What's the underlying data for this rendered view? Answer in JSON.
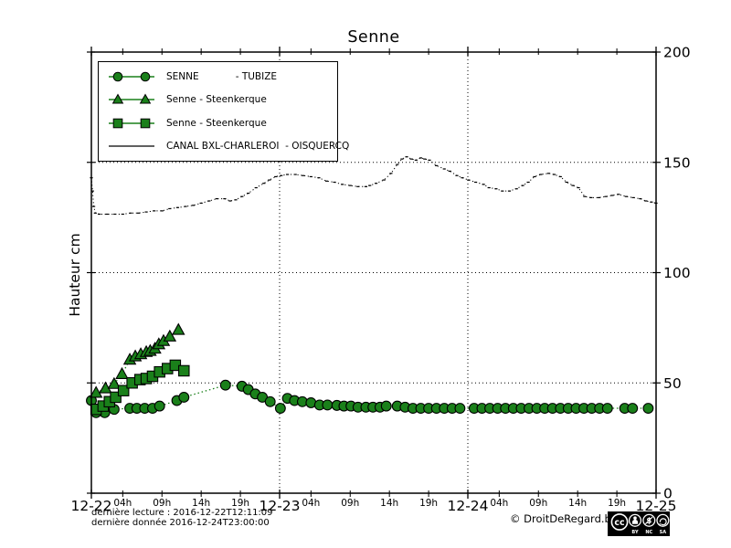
{
  "title": "Senne",
  "y_axis": {
    "label": "Hauteur cm"
  },
  "legend_items": [
    {
      "id": "senne-tubize",
      "label": "SENNE            - TUBIZE",
      "marker": "circle",
      "color": "#1a801a"
    },
    {
      "id": "steenkerque-triangle",
      "label": "Senne - Steenkerque",
      "marker": "triangle",
      "color": "#1a801a"
    },
    {
      "id": "steenkerque-square",
      "label": "Senne - Steenkerque",
      "marker": "square",
      "color": "#1a801a"
    },
    {
      "id": "canal-bxl-oisquercq",
      "label": "CANAL BXL-CHARLEROI  - OISQUERCQ",
      "marker": "line",
      "color": "#000000"
    }
  ],
  "colors": {
    "series_green": "#1a801a",
    "marker_edge": "#000000",
    "canal_line": "#000000",
    "grid": "#000000"
  },
  "footer": {
    "line1": "dernière lecture : 2016-12-22T12:11:09",
    "line2": "dernière donnée  2016-12-24T23:00:00",
    "copyright": "© DroitDeRegard.be",
    "license": {
      "cc": "cc",
      "by": "BY",
      "nc": "NC",
      "sa": "SA"
    }
  },
  "chart_data": {
    "type": "line",
    "title": "Senne",
    "ylabel": "Hauteur cm",
    "ylim": [
      0,
      200
    ],
    "xlim": [
      0,
      72
    ],
    "x_unit": "hours since 2016-12-22 00:00",
    "y_ticks": [
      0,
      50,
      100,
      150,
      200
    ],
    "x_day_ticks": [
      {
        "t": 0,
        "label": "12-22"
      },
      {
        "t": 24,
        "label": "12-23"
      },
      {
        "t": 48,
        "label": "12-24"
      },
      {
        "t": 72,
        "label": "12-25"
      }
    ],
    "x_hour_ticks": {
      "hours": [
        4,
        9,
        14,
        19
      ],
      "labels": [
        "04h",
        "09h",
        "14h",
        "19h"
      ],
      "days": [
        0,
        24,
        48
      ]
    },
    "grid": {
      "vertical_at_hours": [
        24,
        48
      ],
      "horizontal_at": [
        50,
        100,
        150
      ]
    },
    "legend_position": "upper left",
    "series": [
      {
        "id": "senne-tubize",
        "name": "SENNE - TUBIZE",
        "marker": "circle",
        "color": "#1a801a",
        "linestyle": "dotted",
        "points": [
          [
            0,
            42
          ],
          [
            0.6,
            36.5
          ],
          [
            1.7,
            36.5
          ],
          [
            2.9,
            38
          ],
          [
            4.9,
            38.5
          ],
          [
            5.8,
            38.5
          ],
          [
            6.8,
            38.5
          ],
          [
            7.8,
            38.5
          ],
          [
            8.7,
            39.5
          ],
          [
            10.9,
            42
          ],
          [
            11.8,
            43.5
          ],
          [
            17.1,
            49
          ],
          [
            19.2,
            48.5
          ],
          [
            20,
            47
          ],
          [
            20.9,
            45
          ],
          [
            21.8,
            43.5
          ],
          [
            22.8,
            41.5
          ],
          [
            24.1,
            38.5
          ],
          [
            25,
            43
          ],
          [
            25.9,
            42
          ],
          [
            26.9,
            41.5
          ],
          [
            28,
            41
          ],
          [
            29.1,
            40
          ],
          [
            30.1,
            40
          ],
          [
            31.3,
            39.8
          ],
          [
            32.2,
            39.5
          ],
          [
            33.1,
            39.5
          ],
          [
            34,
            39
          ],
          [
            35,
            39
          ],
          [
            35.9,
            39
          ],
          [
            36.8,
            39
          ],
          [
            37.6,
            39.5
          ],
          [
            39,
            39.5
          ],
          [
            40,
            39
          ],
          [
            41,
            38.5
          ],
          [
            42,
            38.5
          ],
          [
            43,
            38.5
          ],
          [
            44,
            38.5
          ],
          [
            45,
            38.5
          ],
          [
            46,
            38.5
          ],
          [
            47,
            38.5
          ],
          [
            48.8,
            38.5
          ],
          [
            49.8,
            38.5
          ],
          [
            50.8,
            38.5
          ],
          [
            51.8,
            38.5
          ],
          [
            52.8,
            38.5
          ],
          [
            53.8,
            38.5
          ],
          [
            54.8,
            38.5
          ],
          [
            55.8,
            38.5
          ],
          [
            56.8,
            38.5
          ],
          [
            57.8,
            38.5
          ],
          [
            58.8,
            38.5
          ],
          [
            59.8,
            38.5
          ],
          [
            60.8,
            38.5
          ],
          [
            61.8,
            38.5
          ],
          [
            62.8,
            38.5
          ],
          [
            63.8,
            38.5
          ],
          [
            64.8,
            38.5
          ],
          [
            65.8,
            38.5
          ],
          [
            68,
            38.5
          ],
          [
            69,
            38.5
          ],
          [
            71,
            38.5
          ]
        ]
      },
      {
        "id": "steenkerque-triangle",
        "name": "Senne - Steenkerque",
        "marker": "triangle",
        "color": "#1a801a",
        "linestyle": "dotted",
        "points": [
          [
            0.6,
            45.5
          ],
          [
            1.8,
            47.5
          ],
          [
            2.9,
            49.5
          ],
          [
            3.9,
            54
          ],
          [
            4.9,
            60.5
          ],
          [
            5.6,
            62
          ],
          [
            6.3,
            63
          ],
          [
            7,
            64
          ],
          [
            7.5,
            64.5
          ],
          [
            8.1,
            65.5
          ],
          [
            8.6,
            67.5
          ],
          [
            9.2,
            69
          ],
          [
            10,
            71
          ],
          [
            11.1,
            74
          ]
        ]
      },
      {
        "id": "steenkerque-square",
        "name": "Senne - Steenkerque",
        "marker": "square",
        "color": "#1a801a",
        "linestyle": "dotted",
        "points": [
          [
            0.6,
            38
          ],
          [
            1.5,
            39.5
          ],
          [
            2.3,
            41.5
          ],
          [
            3.1,
            43.5
          ],
          [
            4.1,
            46.5
          ],
          [
            5.2,
            50
          ],
          [
            6.2,
            51.5
          ],
          [
            7,
            52
          ],
          [
            7.8,
            53
          ],
          [
            8.7,
            55
          ],
          [
            9.7,
            56.5
          ],
          [
            10.7,
            58
          ],
          [
            11.8,
            55.5
          ]
        ]
      },
      {
        "id": "canal-bxl-oisquercq",
        "name": "CANAL BXL-CHARLEROI - OISQUERCQ",
        "marker": "pixel",
        "color": "#000000",
        "linestyle": "dotted",
        "points": [
          [
            0,
            143
          ],
          [
            0.15,
            137
          ],
          [
            0.3,
            130
          ],
          [
            0.5,
            127
          ],
          [
            1,
            126.5
          ],
          [
            2,
            126.5
          ],
          [
            3,
            126.5
          ],
          [
            4,
            126.5
          ],
          [
            5,
            127
          ],
          [
            6,
            127
          ],
          [
            7,
            127.5
          ],
          [
            8,
            128
          ],
          [
            9,
            128
          ],
          [
            10,
            129
          ],
          [
            11,
            129.5
          ],
          [
            12,
            130
          ],
          [
            13,
            130.5
          ],
          [
            14,
            131.5
          ],
          [
            15,
            132.5
          ],
          [
            16,
            133.5
          ],
          [
            17,
            133.5
          ],
          [
            17.7,
            132.5
          ],
          [
            18.4,
            133
          ],
          [
            19.2,
            134.5
          ],
          [
            20,
            136
          ],
          [
            21,
            138.5
          ],
          [
            22,
            140.5
          ],
          [
            22.7,
            142
          ],
          [
            23.5,
            143.5
          ],
          [
            24.2,
            144
          ],
          [
            25,
            144.5
          ],
          [
            26,
            144.5
          ],
          [
            27,
            144
          ],
          [
            28,
            143.5
          ],
          [
            29,
            143
          ],
          [
            30,
            141.5
          ],
          [
            31,
            141
          ],
          [
            32,
            140
          ],
          [
            33,
            139.5
          ],
          [
            34,
            139
          ],
          [
            35,
            139
          ],
          [
            35.5,
            139.5
          ],
          [
            36.3,
            140.5
          ],
          [
            37.3,
            142
          ],
          [
            38.2,
            145
          ],
          [
            39,
            149
          ],
          [
            39.6,
            151.5
          ],
          [
            40.2,
            152.5
          ],
          [
            40.8,
            151.5
          ],
          [
            41.4,
            151
          ],
          [
            42,
            152
          ],
          [
            42.5,
            151.5
          ],
          [
            43.1,
            151
          ],
          [
            44,
            148.5
          ],
          [
            45,
            147
          ],
          [
            45.7,
            146
          ],
          [
            46.6,
            144
          ],
          [
            47.3,
            143
          ],
          [
            48.1,
            142
          ],
          [
            49,
            141
          ],
          [
            50,
            140
          ],
          [
            50.7,
            138.5
          ],
          [
            51.6,
            138
          ],
          [
            52.4,
            137
          ],
          [
            53.3,
            137
          ],
          [
            54.2,
            138
          ],
          [
            55,
            139.5
          ],
          [
            55.7,
            141
          ],
          [
            56.5,
            143.5
          ],
          [
            57.3,
            144.5
          ],
          [
            58.3,
            145
          ],
          [
            59,
            144.5
          ],
          [
            59.8,
            143.5
          ],
          [
            60.6,
            141
          ],
          [
            61.4,
            139.5
          ],
          [
            62.1,
            138.5
          ],
          [
            62.9,
            134.5
          ],
          [
            63.7,
            134
          ],
          [
            64.7,
            134
          ],
          [
            65.6,
            134.5
          ],
          [
            66.4,
            135
          ],
          [
            67.2,
            135.5
          ],
          [
            68.2,
            134.5
          ],
          [
            69.1,
            134
          ],
          [
            70,
            133.5
          ],
          [
            70.7,
            132.5
          ],
          [
            71.4,
            132
          ],
          [
            72,
            131.5
          ]
        ]
      }
    ]
  }
}
